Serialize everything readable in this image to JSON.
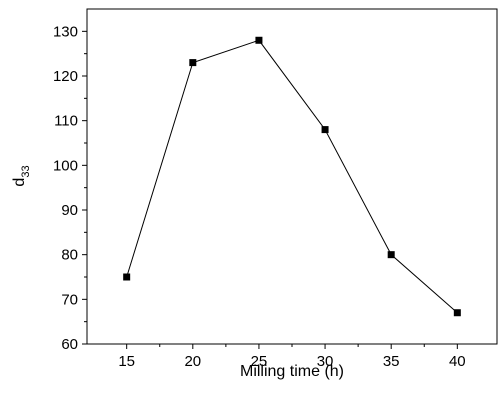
{
  "chart_data": {
    "type": "line",
    "title": "",
    "xlabel": "Milling time (h)",
    "ylabel_main": "d",
    "ylabel_sub": "33",
    "xlim": [
      12,
      43
    ],
    "ylim": [
      60,
      135
    ],
    "xticks": [
      15,
      20,
      25,
      30,
      35,
      40
    ],
    "yticks": [
      60,
      70,
      80,
      90,
      100,
      110,
      120,
      130
    ],
    "grid": false,
    "legend": "none",
    "marker": "square",
    "color": "#000000",
    "series": [
      {
        "x": [
          15,
          20,
          25,
          30,
          35,
          40
        ],
        "y": [
          75,
          123,
          128,
          108,
          80,
          67
        ]
      }
    ]
  }
}
